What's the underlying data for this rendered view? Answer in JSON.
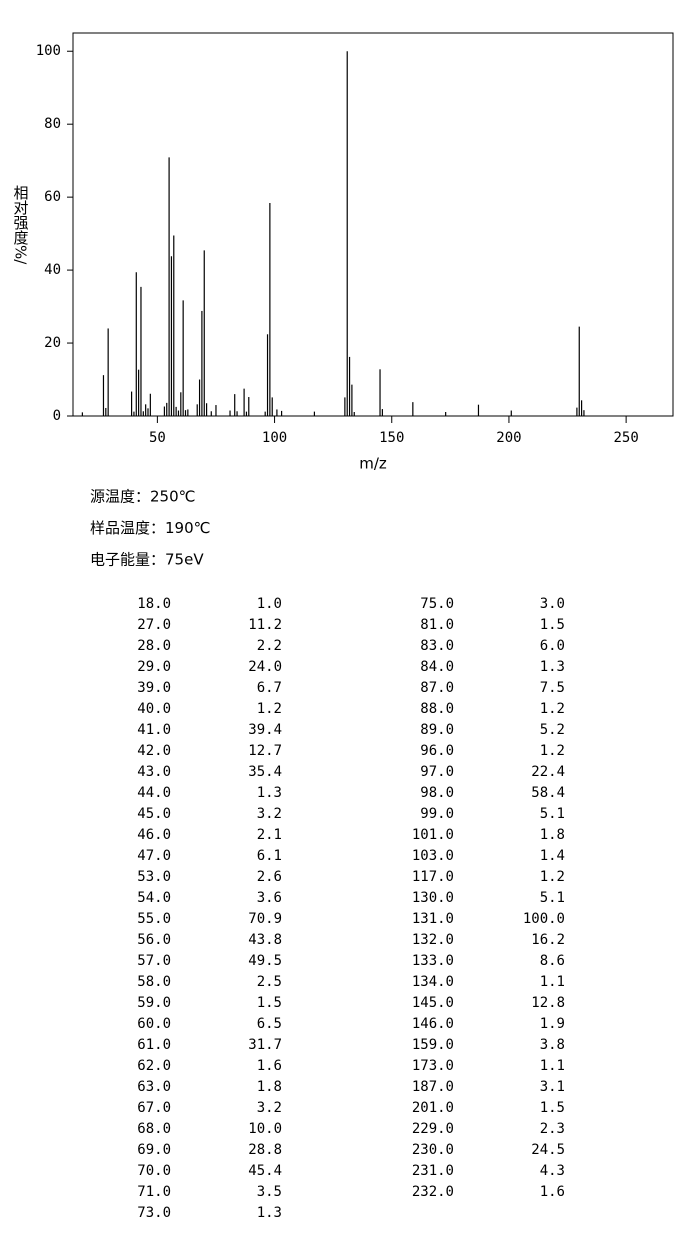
{
  "chart_data": {
    "type": "stem",
    "xlabel": "m/z",
    "ylabel": "相对强度%/",
    "x": [
      18,
      27,
      28,
      29,
      39,
      40,
      41,
      42,
      43,
      44,
      45,
      46,
      47,
      53,
      54,
      55,
      56,
      57,
      58,
      59,
      60,
      61,
      62,
      63,
      67,
      68,
      69,
      70,
      71,
      73,
      75,
      81,
      83,
      84,
      87,
      88,
      89,
      96,
      97,
      98,
      99,
      101,
      103,
      117,
      130,
      131,
      132,
      133,
      134,
      145,
      146,
      159,
      173,
      187,
      201,
      229,
      230,
      231,
      232
    ],
    "values": [
      1.0,
      11.2,
      2.2,
      24.0,
      6.7,
      1.2,
      39.4,
      12.7,
      35.4,
      1.3,
      3.2,
      2.1,
      6.1,
      2.6,
      3.6,
      70.9,
      43.8,
      49.5,
      2.5,
      1.5,
      6.5,
      31.7,
      1.6,
      1.8,
      3.2,
      10.0,
      28.8,
      45.4,
      3.5,
      1.3,
      3.0,
      1.5,
      6.0,
      1.3,
      7.5,
      1.2,
      5.2,
      1.2,
      22.4,
      58.4,
      5.1,
      1.8,
      1.4,
      1.2,
      5.1,
      100.0,
      16.2,
      8.6,
      1.1,
      12.8,
      1.9,
      3.8,
      1.1,
      3.1,
      1.5,
      2.3,
      24.5,
      4.3,
      1.6
    ],
    "color": "#000000",
    "xlim": [
      14,
      270
    ],
    "ylim": [
      0,
      105
    ],
    "xticks": [
      50,
      100,
      150,
      200,
      250
    ],
    "yticks": [
      0,
      20,
      40,
      60,
      80,
      100
    ]
  },
  "conditions": [
    "源温度：250℃",
    "样品温度：190℃",
    "电子能量：75eV"
  ],
  "peak_table": {
    "rows": [
      [
        "18.0",
        "1.0"
      ],
      [
        "27.0",
        "11.2"
      ],
      [
        "28.0",
        "2.2"
      ],
      [
        "29.0",
        "24.0"
      ],
      [
        "39.0",
        "6.7"
      ],
      [
        "40.0",
        "1.2"
      ],
      [
        "41.0",
        "39.4"
      ],
      [
        "42.0",
        "12.7"
      ],
      [
        "43.0",
        "35.4"
      ],
      [
        "44.0",
        "1.3"
      ],
      [
        "45.0",
        "3.2"
      ],
      [
        "46.0",
        "2.1"
      ],
      [
        "47.0",
        "6.1"
      ],
      [
        "53.0",
        "2.6"
      ],
      [
        "54.0",
        "3.6"
      ],
      [
        "55.0",
        "70.9"
      ],
      [
        "56.0",
        "43.8"
      ],
      [
        "57.0",
        "49.5"
      ],
      [
        "58.0",
        "2.5"
      ],
      [
        "59.0",
        "1.5"
      ],
      [
        "60.0",
        "6.5"
      ],
      [
        "61.0",
        "31.7"
      ],
      [
        "62.0",
        "1.6"
      ],
      [
        "63.0",
        "1.8"
      ],
      [
        "67.0",
        "3.2"
      ],
      [
        "68.0",
        "10.0"
      ],
      [
        "69.0",
        "28.8"
      ],
      [
        "70.0",
        "45.4"
      ],
      [
        "71.0",
        "3.5"
      ],
      [
        "73.0",
        "1.3"
      ],
      [
        "75.0",
        "3.0"
      ],
      [
        "81.0",
        "1.5"
      ],
      [
        "83.0",
        "6.0"
      ],
      [
        "84.0",
        "1.3"
      ],
      [
        "87.0",
        "7.5"
      ],
      [
        "88.0",
        "1.2"
      ],
      [
        "89.0",
        "5.2"
      ],
      [
        "96.0",
        "1.2"
      ],
      [
        "97.0",
        "22.4"
      ],
      [
        "98.0",
        "58.4"
      ],
      [
        "99.0",
        "5.1"
      ],
      [
        "101.0",
        "1.8"
      ],
      [
        "103.0",
        "1.4"
      ],
      [
        "117.0",
        "1.2"
      ],
      [
        "130.0",
        "5.1"
      ],
      [
        "131.0",
        "100.0"
      ],
      [
        "132.0",
        "16.2"
      ],
      [
        "133.0",
        "8.6"
      ],
      [
        "134.0",
        "1.1"
      ],
      [
        "145.0",
        "12.8"
      ],
      [
        "146.0",
        "1.9"
      ],
      [
        "159.0",
        "3.8"
      ],
      [
        "173.0",
        "1.1"
      ],
      [
        "187.0",
        "3.1"
      ],
      [
        "201.0",
        "1.5"
      ],
      [
        "229.0",
        "2.3"
      ],
      [
        "230.0",
        "24.5"
      ],
      [
        "231.0",
        "4.3"
      ],
      [
        "232.0",
        "1.6"
      ]
    ]
  }
}
